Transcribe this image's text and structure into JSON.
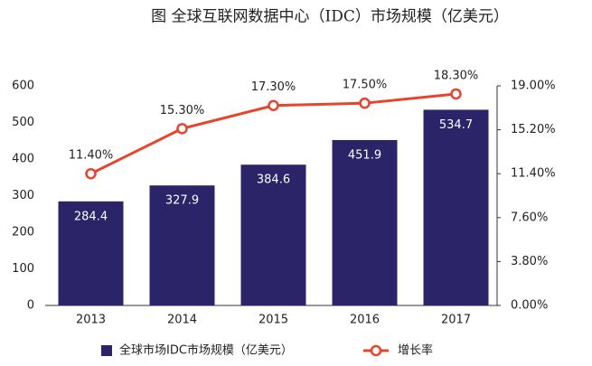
{
  "chart_data": {
    "type": "combo",
    "title": "图 全球互联网数据中心（IDC）市场规模（亿美元）",
    "categories": [
      "2013",
      "2014",
      "2015",
      "2016",
      "2017"
    ],
    "series": [
      {
        "name": "全球市场IDC市场规模（亿美元）",
        "type": "bar",
        "color": "#2b2468",
        "values": [
          284.4,
          327.9,
          384.6,
          451.9,
          534.7
        ]
      },
      {
        "name": "增长率",
        "type": "line",
        "axis": "y2",
        "color": "#e8432b",
        "values": [
          11.4,
          15.3,
          17.3,
          17.5,
          18.3
        ],
        "value_labels": [
          "11.40%",
          "15.30%",
          "17.30%",
          "17.50%",
          "18.30%"
        ]
      }
    ],
    "ylim": [
      0,
      600
    ],
    "yticks": [
      0,
      100,
      200,
      300,
      400,
      500,
      600
    ],
    "y2lim": [
      0,
      19
    ],
    "y2ticks": [
      {
        "value": 0,
        "label": "0.00%"
      },
      {
        "value": 3.8,
        "label": "3.80%"
      },
      {
        "value": 7.6,
        "label": "7.60%"
      },
      {
        "value": 11.4,
        "label": "11.40%"
      },
      {
        "value": 15.2,
        "label": "15.20%"
      },
      {
        "value": 19,
        "label": "19.00%"
      }
    ],
    "legend": "bottom"
  }
}
